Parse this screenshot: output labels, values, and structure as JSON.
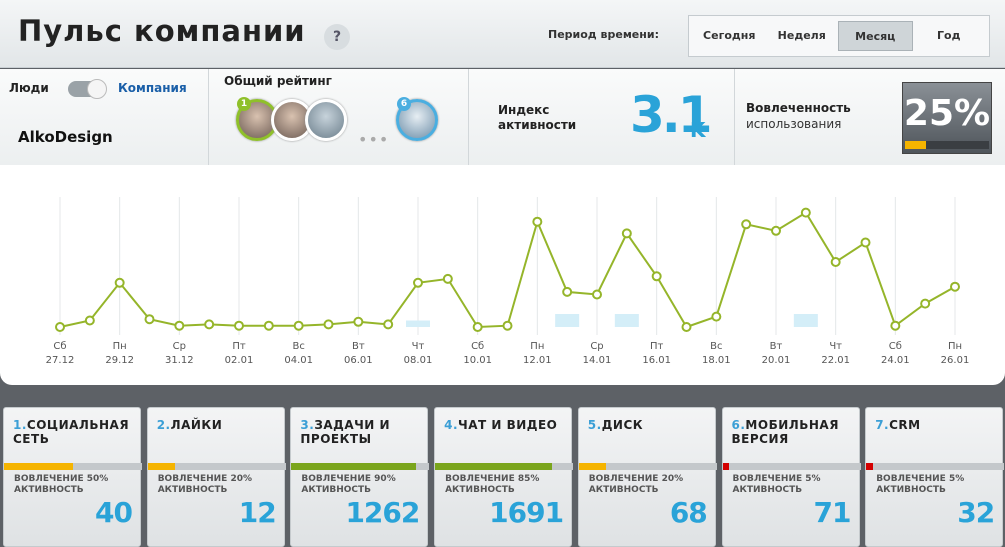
{
  "header": {
    "title": "Пульс компании",
    "help": "?",
    "period_label": "Период времени:",
    "periods": [
      "Сегодня",
      "Неделя",
      "Месяц",
      "Год"
    ],
    "active_period": 2
  },
  "toggle": {
    "left": "Люди",
    "right": "Компания"
  },
  "company": "AlkoDesign",
  "rating": {
    "title": "Общий рейтинг",
    "first_badge": "1",
    "last_badge": "6"
  },
  "activity": {
    "label_1": "Индекс",
    "label_2": "активности",
    "value": "3.1",
    "unit": "K"
  },
  "engagement": {
    "label_1": "Вовлеченность",
    "label_2": "использования",
    "gauge": {
      "value": 25,
      "label": "25%"
    }
  },
  "chart_data": {
    "type": "line",
    "grid": true,
    "ylim": [
      0,
      100
    ],
    "categories": [
      "27.12",
      null,
      "29.12",
      null,
      "31.12",
      null,
      "02.01",
      null,
      "04.01",
      null,
      "06.01",
      null,
      "08.01",
      null,
      "10.01",
      null,
      "12.01",
      null,
      "14.01",
      null,
      "16.01",
      null,
      "18.01",
      null,
      "20.01",
      null,
      "22.01",
      null,
      "24.01",
      null,
      "26.01"
    ],
    "weekdays": [
      "Сб",
      null,
      "Пн",
      null,
      "Ср",
      null,
      "Пт",
      null,
      "Вс",
      null,
      "Вт",
      null,
      "Чт",
      null,
      "Сб",
      null,
      "Пн",
      null,
      "Ср",
      null,
      "Пт",
      null,
      "Вс",
      null,
      "Вт",
      null,
      "Чт",
      null,
      "Сб",
      null,
      "Пн"
    ],
    "series": [
      {
        "color": "#95b52a",
        "values": [
          0,
          5,
          34,
          6,
          1,
          2,
          1,
          1,
          1,
          2,
          4,
          2,
          34,
          37,
          0,
          1,
          81,
          27,
          25,
          72,
          39,
          0,
          8,
          79,
          74,
          88,
          50,
          65,
          1,
          18,
          31
        ]
      },
      {
        "type": "bar",
        "color": "#d4eef8",
        "values": [
          null,
          null,
          null,
          null,
          null,
          null,
          null,
          null,
          null,
          null,
          null,
          null,
          5,
          null,
          null,
          null,
          null,
          10,
          null,
          10,
          null,
          null,
          null,
          null,
          null,
          10,
          null,
          null,
          null,
          null,
          null
        ]
      }
    ]
  },
  "cards": [
    {
      "number": "1.",
      "title": "СОЦИАЛЬНАЯ СЕТЬ",
      "engagement_label": "ВОВЛЕЧЕНИЕ",
      "engagement": {
        "value": 50,
        "label": "50%"
      },
      "activity_label": "АКТИВНОСТЬ",
      "value": 40,
      "color": "#f5b400"
    },
    {
      "number": "2.",
      "title": "ЛАЙКИ",
      "engagement_label": "ВОВЛЕЧЕНИЕ",
      "engagement": {
        "value": 20,
        "label": "20%"
      },
      "activity_label": "АКТИВНОСТЬ",
      "value": 12,
      "color": "#f5b400"
    },
    {
      "number": "3.",
      "title": "ЗАДАЧИ И ПРОЕКТЫ",
      "engagement_label": "ВОВЛЕЧЕНИЕ",
      "engagement": {
        "value": 90,
        "label": "90%"
      },
      "activity_label": "АКТИВНОСТЬ",
      "value": 1262,
      "color": "#7aa51c"
    },
    {
      "number": "4.",
      "title": "ЧАТ И ВИДЕО",
      "engagement_label": "ВОВЛЕЧЕНИЕ",
      "engagement": {
        "value": 85,
        "label": "85%"
      },
      "activity_label": "АКТИВНОСТЬ",
      "value": 1691,
      "color": "#7aa51c"
    },
    {
      "number": "5.",
      "title": "ДИСК",
      "engagement_label": "ВОВЛЕЧЕНИЕ",
      "engagement": {
        "value": 20,
        "label": "20%"
      },
      "activity_label": "АКТИВНОСТЬ",
      "value": 68,
      "color": "#f5b400"
    },
    {
      "number": "6.",
      "title": "МОБИЛЬНАЯ ВЕРСИЯ",
      "engagement_label": "ВОВЛЕЧЕНИЕ",
      "engagement": {
        "value": 5,
        "label": "5%"
      },
      "activity_label": "АКТИВНОСТЬ",
      "value": 71,
      "color": "#d40000"
    },
    {
      "number": "7.",
      "title": "CRM",
      "engagement_label": "ВОВЛЕЧЕНИЕ",
      "engagement": {
        "value": 5,
        "label": "5%"
      },
      "activity_label": "АКТИВНОСТЬ",
      "value": 32,
      "color": "#d40000"
    }
  ]
}
